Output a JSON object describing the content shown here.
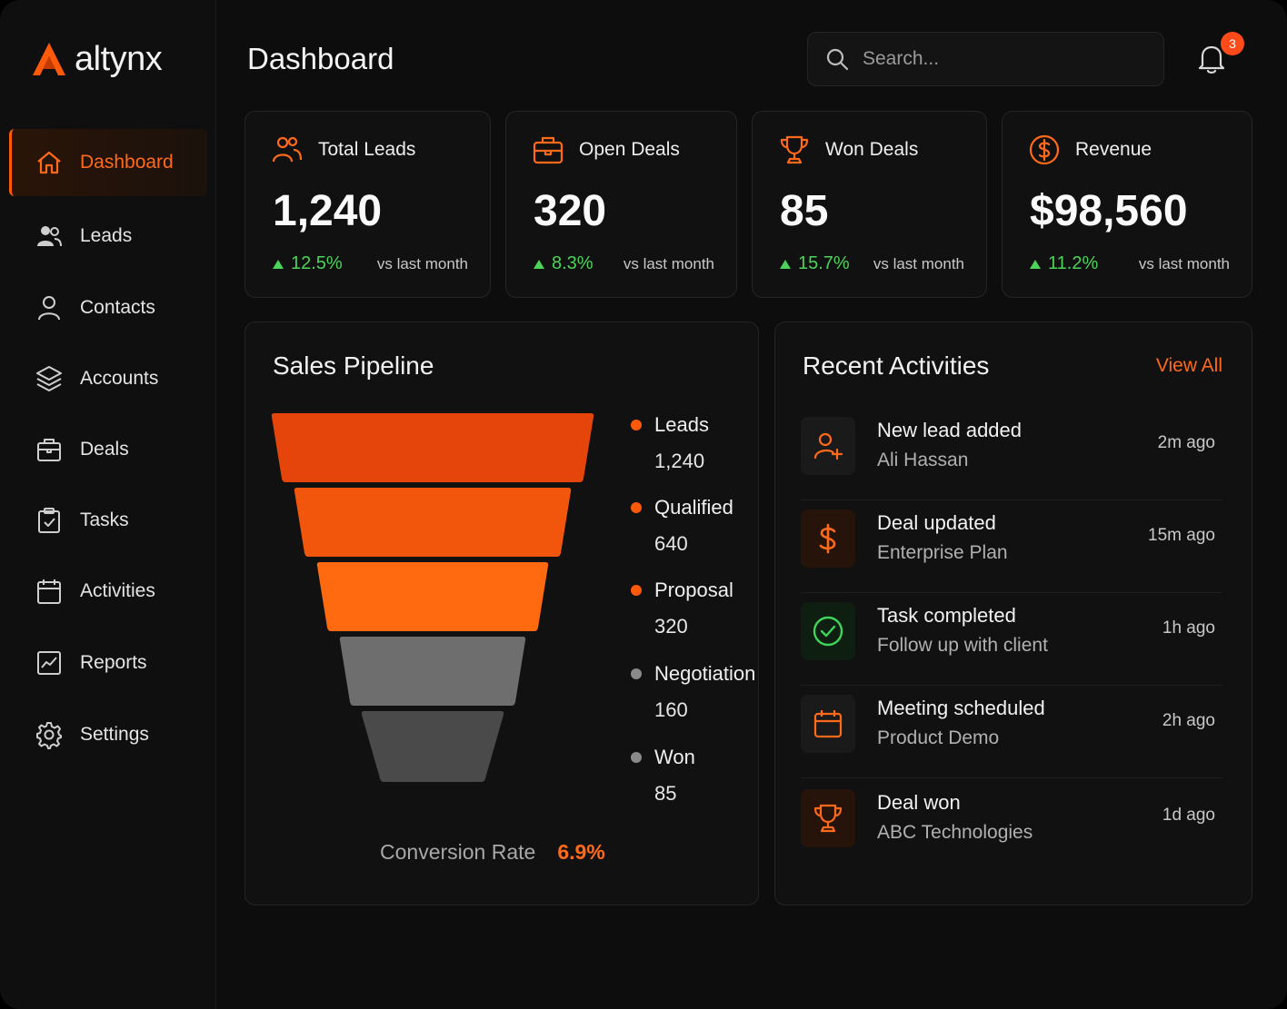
{
  "brand": {
    "name": "altynx",
    "accent": "#ff5a0a"
  },
  "header": {
    "title": "Dashboard",
    "search_placeholder": "Search...",
    "notification_count": "3"
  },
  "sidebar": {
    "items": [
      {
        "label": "Dashboard",
        "icon": "home-icon",
        "active": true
      },
      {
        "label": "Leads",
        "icon": "users-icon"
      },
      {
        "label": "Contacts",
        "icon": "user-icon"
      },
      {
        "label": "Accounts",
        "icon": "layers-icon"
      },
      {
        "label": "Deals",
        "icon": "briefcase-icon"
      },
      {
        "label": "Tasks",
        "icon": "clipboard-check-icon"
      },
      {
        "label": "Activities",
        "icon": "calendar-icon"
      },
      {
        "label": "Reports",
        "icon": "chart-icon"
      },
      {
        "label": "Settings",
        "icon": "gear-icon"
      }
    ]
  },
  "stats": [
    {
      "label": "Total Leads",
      "value": "1,240",
      "change": "12.5%",
      "note": "vs last month",
      "icon": "users-icon"
    },
    {
      "label": "Open Deals",
      "value": "320",
      "change": "8.3%",
      "note": "vs last month",
      "icon": "briefcase-icon"
    },
    {
      "label": "Won Deals",
      "value": "85",
      "change": "15.7%",
      "note": "vs last month",
      "icon": "trophy-icon"
    },
    {
      "label": "Revenue",
      "value": "$98,560",
      "change": "11.2%",
      "note": "vs last month",
      "icon": "dollar-icon"
    }
  ],
  "pipeline": {
    "title": "Sales Pipeline",
    "conversion_label": "Conversion Rate",
    "conversion_value": "6.9%"
  },
  "chart_data": {
    "type": "funnel",
    "title": "Sales Pipeline",
    "categories": [
      "Leads",
      "Qualified",
      "Proposal",
      "Negotiation",
      "Won"
    ],
    "values": [
      1240,
      640,
      320,
      160,
      85
    ],
    "value_labels": [
      "1,240",
      "640",
      "320",
      "160",
      "85"
    ],
    "colors": [
      "#e5450a",
      "#f2560c",
      "#ff6a10",
      "#6e6e6e",
      "#4a4a4a"
    ],
    "dot_colors": [
      "#ff5a0a",
      "#ff5a0a",
      "#ff5a0a",
      "#8a8a8a",
      "#8a8a8a"
    ],
    "legend_position": "right"
  },
  "activities": {
    "title": "Recent Activities",
    "view_all": "View All",
    "items": [
      {
        "title": "New lead added",
        "subtitle": "Ali Hassan",
        "time": "2m ago",
        "icon": "user-plus-icon"
      },
      {
        "title": "Deal updated",
        "subtitle": "Enterprise Plan",
        "time": "15m ago",
        "icon": "dollar-icon"
      },
      {
        "title": "Task completed",
        "subtitle": "Follow up with client",
        "time": "1h ago",
        "icon": "check-circle-icon"
      },
      {
        "title": "Meeting scheduled",
        "subtitle": "Product Demo",
        "time": "2h ago",
        "icon": "calendar-icon"
      },
      {
        "title": "Deal won",
        "subtitle": "ABC Technologies",
        "time": "1d ago",
        "icon": "trophy-icon"
      }
    ]
  }
}
